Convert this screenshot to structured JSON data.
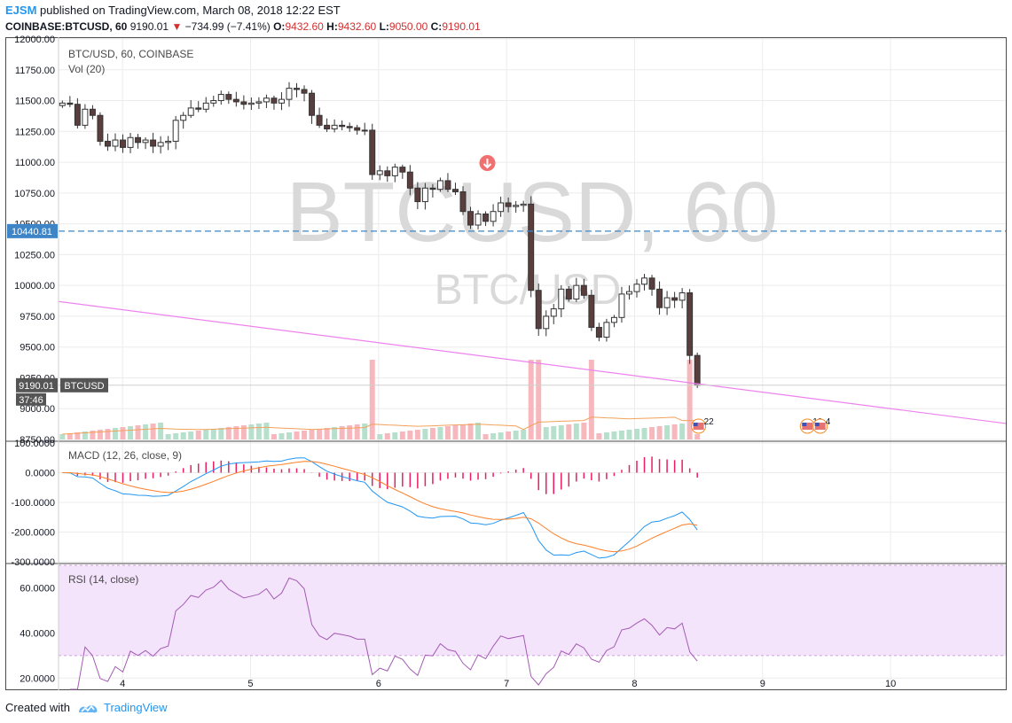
{
  "header": {
    "brand": "EJSM",
    "published": "published on TradingView.com, March 08, 2018 12:22 EST",
    "symbol": "COINBASE:BTCUSD, 60",
    "last": "9190.01",
    "change": "−734.99 (−7.41%)",
    "o_label": "O:",
    "o": "9432.60",
    "h_label": "H:",
    "h": "9432.60",
    "l_label": "L:",
    "l": "9050.00",
    "c_label": "C:",
    "c": "9190.01"
  },
  "footer": {
    "created_with": "Created with",
    "brand": "TradingView"
  },
  "colors": {
    "up": "#ffffff",
    "down": "#5a3e3e",
    "wick": "#333333",
    "macd": "#2196f3",
    "signal": "#ff7f27",
    "hist": "#e91e63",
    "rsi": "#a35bb3",
    "rsiBand": "#f3e3fb",
    "trend": "#ee82ee",
    "hline": "#3d85c6"
  },
  "chart_data": [
    {
      "type": "candlestick",
      "title": "BTC/USD, 60, COINBASE",
      "indicator": "Vol (20)",
      "watermark": "BTCUSD, 60",
      "watermark_sub": "BTC/USD",
      "ylim": [
        8750,
        12000
      ],
      "y_ticks": [
        "12000.00",
        "11750.00",
        "11500.00",
        "11250.00",
        "11000.00",
        "10750.00",
        "10500.00",
        "10250.00",
        "10000.00",
        "9750.00",
        "9500.00",
        "9250.00",
        "9000.00",
        "8750.00"
      ],
      "x_ticks": [
        "4",
        "5",
        "6",
        "7",
        "8",
        "9",
        "10"
      ],
      "xlim": [
        3.5,
        10.9
      ],
      "price_line": {
        "value": 10440.81,
        "label": "10440.81"
      },
      "last_price": {
        "value": 9190.01,
        "label": "9190.01",
        "symbol": "BTCUSD",
        "countdown": "37:46"
      },
      "trendline": [
        [
          3.5,
          9870
        ],
        [
          10.9,
          8880
        ]
      ],
      "events": [
        {
          "x": 8.5,
          "label": "22"
        },
        {
          "x": 9.35,
          "label": "19"
        },
        {
          "x": 9.45,
          "label": "4"
        }
      ],
      "sell_marker_x": 6.85,
      "closes": [
        11480,
        11470,
        11300,
        11430,
        11380,
        11170,
        11130,
        11180,
        11120,
        11200,
        11160,
        11180,
        11130,
        11160,
        11170,
        11340,
        11380,
        11440,
        11430,
        11480,
        11500,
        11550,
        11510,
        11490,
        11470,
        11480,
        11490,
        11520,
        11480,
        11510,
        11600,
        11590,
        11560,
        11380,
        11300,
        11270,
        11300,
        11290,
        11280,
        11260,
        11260,
        10900,
        10930,
        10890,
        10960,
        10920,
        10790,
        10680,
        10790,
        10780,
        10850,
        10780,
        10760,
        10600,
        10490,
        10580,
        10520,
        10600,
        10670,
        10640,
        10650,
        10660,
        9960,
        9650,
        9750,
        9810,
        9970,
        9890,
        10000,
        9920,
        9660,
        9580,
        9700,
        9740,
        9930,
        9950,
        10010,
        10060,
        9970,
        9820,
        9900,
        9880,
        9940,
        9432,
        9190
      ]
    },
    {
      "type": "line",
      "title": "MACD (12, 26, close, 9)",
      "ylim": [
        -300,
        100
      ],
      "y_ticks": [
        "100.0000",
        "0.0000",
        "-100.0000",
        "-200.0000",
        "-300.0000"
      ]
    },
    {
      "type": "line",
      "title": "RSI (14, close)",
      "ylim": [
        15,
        70
      ],
      "y_ticks": [
        "60.0000",
        "40.0000",
        "20.0000"
      ],
      "band": [
        30,
        70
      ]
    }
  ]
}
